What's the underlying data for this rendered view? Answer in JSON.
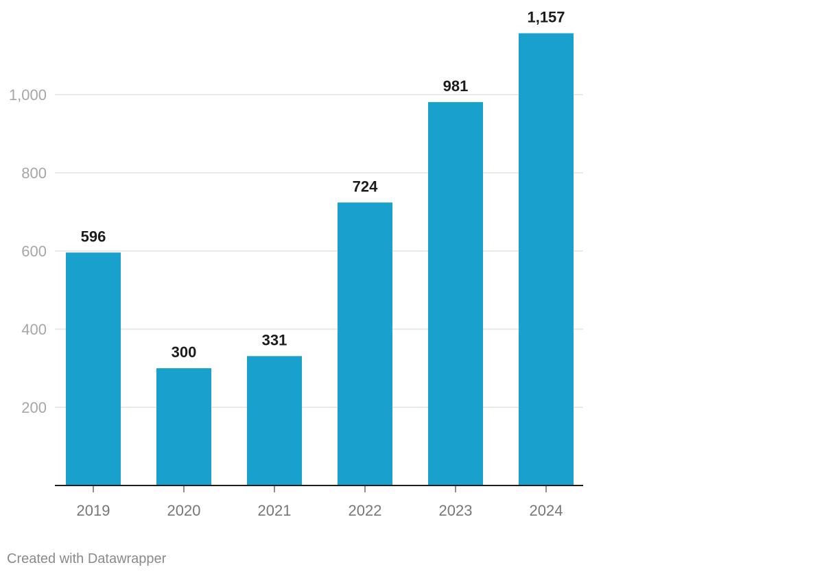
{
  "chart_data": {
    "type": "bar",
    "categories": [
      "2019",
      "2020",
      "2021",
      "2022",
      "2023",
      "2024"
    ],
    "values": [
      596,
      300,
      331,
      724,
      981,
      1157
    ],
    "value_labels": [
      "596",
      "300",
      "331",
      "724",
      "981",
      "1,157"
    ],
    "y_ticks": [
      200,
      400,
      600,
      800,
      1000
    ],
    "y_tick_labels": [
      "200",
      "400",
      "600",
      "800",
      "1,000"
    ],
    "ylim": [
      0,
      1200
    ],
    "grid": true,
    "bar_color": "#1aa0cd",
    "gridline_color": "#e3e3e3",
    "axis_color": "#1c1c1c"
  },
  "footer": {
    "credit": "Created with Datawrapper"
  }
}
